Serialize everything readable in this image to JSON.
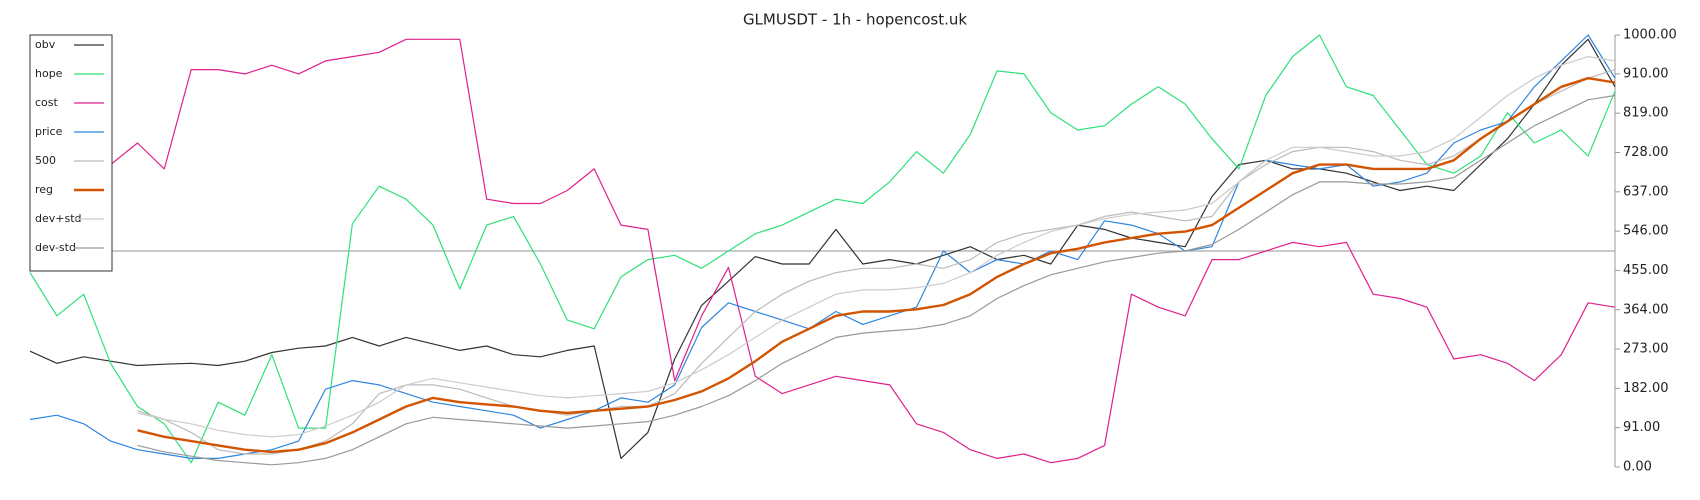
{
  "chart_data": {
    "type": "line",
    "title": "GLMUSDT - 1h - hopencost.uk",
    "ylim": [
      0,
      1000
    ],
    "yticks": [
      {
        "value": 0,
        "label": "0.00"
      },
      {
        "value": 91,
        "label": "91.00"
      },
      {
        "value": 182,
        "label": "182.00"
      },
      {
        "value": 273,
        "label": "273.00"
      },
      {
        "value": 364,
        "label": "364.00"
      },
      {
        "value": 455,
        "label": "455.00"
      },
      {
        "value": 546,
        "label": "546.00"
      },
      {
        "value": 637,
        "label": "637.00"
      },
      {
        "value": 728,
        "label": "728.00"
      },
      {
        "value": 819,
        "label": "819.00"
      },
      {
        "value": 910,
        "label": "910.00"
      },
      {
        "value": 1000,
        "label": "1000.00"
      }
    ],
    "hline": 500,
    "hline_color": "#aaaaaa",
    "legend": "upper left",
    "series": [
      {
        "name": "obv",
        "color": "#333333",
        "width": 1.2,
        "values": [
          268,
          240,
          255,
          245,
          235,
          238,
          240,
          235,
          245,
          265,
          275,
          280,
          300,
          280,
          300,
          285,
          270,
          280,
          260,
          255,
          270,
          280,
          20,
          80,
          250,
          374,
          430,
          487,
          470,
          470,
          550,
          470,
          480,
          470,
          490,
          510,
          480,
          490,
          470,
          560,
          550,
          530,
          520,
          510,
          626,
          700,
          710,
          690,
          690,
          680,
          660,
          640,
          650,
          640,
          700,
          760,
          840,
          930,
          990,
          880
        ]
      },
      {
        "name": "hope",
        "color": "#2ee07a",
        "width": 1.2,
        "values": [
          450,
          350,
          400,
          240,
          140,
          100,
          10,
          150,
          120,
          260,
          90,
          90,
          563,
          650,
          620,
          560,
          412,
          560,
          580,
          470,
          340,
          320,
          440,
          480,
          490,
          460,
          500,
          540,
          560,
          590,
          620,
          610,
          660,
          730,
          680,
          770,
          917,
          910,
          820,
          780,
          790,
          840,
          880,
          840,
          760,
          690,
          860,
          950,
          1000,
          880,
          860,
          780,
          700,
          680,
          720,
          820,
          750,
          780,
          720,
          870
        ]
      },
      {
        "name": "cost",
        "color": "#e0208a",
        "width": 1.2,
        "values": [
          null,
          null,
          null,
          700,
          750,
          690,
          920,
          920,
          910,
          930,
          910,
          940,
          950,
          960,
          990,
          990,
          990,
          620,
          610,
          610,
          640,
          690,
          560,
          550,
          200,
          350,
          462,
          210,
          170,
          190,
          210,
          200,
          190,
          100,
          80,
          40,
          20,
          30,
          10,
          20,
          50,
          400,
          370,
          350,
          480,
          480,
          500,
          520,
          510,
          520,
          400,
          390,
          370,
          250,
          260,
          240,
          200,
          260,
          380,
          370
        ]
      },
      {
        "name": "price",
        "color": "#2e86de",
        "width": 1.2,
        "values": [
          110,
          120,
          100,
          60,
          40,
          30,
          20,
          20,
          30,
          40,
          60,
          180,
          200,
          190,
          170,
          150,
          140,
          130,
          120,
          90,
          110,
          130,
          160,
          150,
          190,
          323,
          380,
          360,
          340,
          320,
          360,
          330,
          350,
          370,
          500,
          450,
          480,
          470,
          500,
          480,
          570,
          560,
          540,
          500,
          510,
          660,
          710,
          700,
          690,
          700,
          650,
          660,
          680,
          750,
          780,
          800,
          880,
          940,
          1000,
          900
        ]
      },
      {
        "name": "500",
        "color": "#bbbbbb",
        "width": 1.2,
        "values": [
          null,
          null,
          null,
          null,
          130,
          110,
          80,
          40,
          30,
          30,
          40,
          60,
          100,
          170,
          190,
          190,
          180,
          160,
          140,
          130,
          120,
          130,
          140,
          140,
          170,
          240,
          300,
          360,
          400,
          430,
          450,
          460,
          460,
          470,
          460,
          480,
          520,
          540,
          550,
          560,
          580,
          590,
          580,
          570,
          580,
          660,
          700,
          730,
          740,
          740,
          730,
          710,
          700,
          720,
          760,
          800,
          840,
          870,
          900,
          920
        ]
      },
      {
        "name": "reg",
        "color": "#d35400",
        "width": 2.4,
        "values": [
          null,
          null,
          null,
          null,
          85,
          70,
          60,
          50,
          40,
          35,
          40,
          55,
          80,
          110,
          140,
          160,
          150,
          145,
          140,
          130,
          125,
          130,
          135,
          140,
          155,
          175,
          205,
          245,
          290,
          320,
          350,
          360,
          360,
          365,
          375,
          400,
          440,
          470,
          495,
          505,
          520,
          530,
          540,
          545,
          560,
          600,
          640,
          680,
          700,
          700,
          690,
          690,
          690,
          710,
          760,
          800,
          840,
          880,
          900,
          890
        ]
      },
      {
        "name": "dev+std",
        "color": "#cccccc",
        "width": 1.2,
        "values": [
          null,
          null,
          null,
          null,
          125,
          110,
          100,
          85,
          75,
          70,
          75,
          95,
          120,
          150,
          190,
          205,
          195,
          185,
          175,
          165,
          160,
          165,
          170,
          175,
          195,
          225,
          260,
          300,
          340,
          370,
          400,
          410,
          410,
          415,
          425,
          450,
          490,
          520,
          545,
          560,
          575,
          585,
          590,
          595,
          610,
          660,
          710,
          740,
          740,
          730,
          720,
          720,
          730,
          760,
          810,
          860,
          900,
          930,
          950,
          940
        ]
      },
      {
        "name": "dev-std",
        "color": "#999999",
        "width": 1.2,
        "values": [
          null,
          null,
          null,
          null,
          50,
          35,
          25,
          15,
          10,
          5,
          10,
          20,
          40,
          70,
          100,
          115,
          110,
          105,
          100,
          95,
          90,
          95,
          100,
          105,
          120,
          140,
          165,
          200,
          240,
          270,
          300,
          310,
          315,
          320,
          330,
          350,
          390,
          420,
          445,
          460,
          475,
          485,
          495,
          500,
          515,
          550,
          590,
          630,
          660,
          660,
          655,
          655,
          660,
          670,
          710,
          750,
          790,
          820,
          850,
          860
        ]
      }
    ]
  }
}
